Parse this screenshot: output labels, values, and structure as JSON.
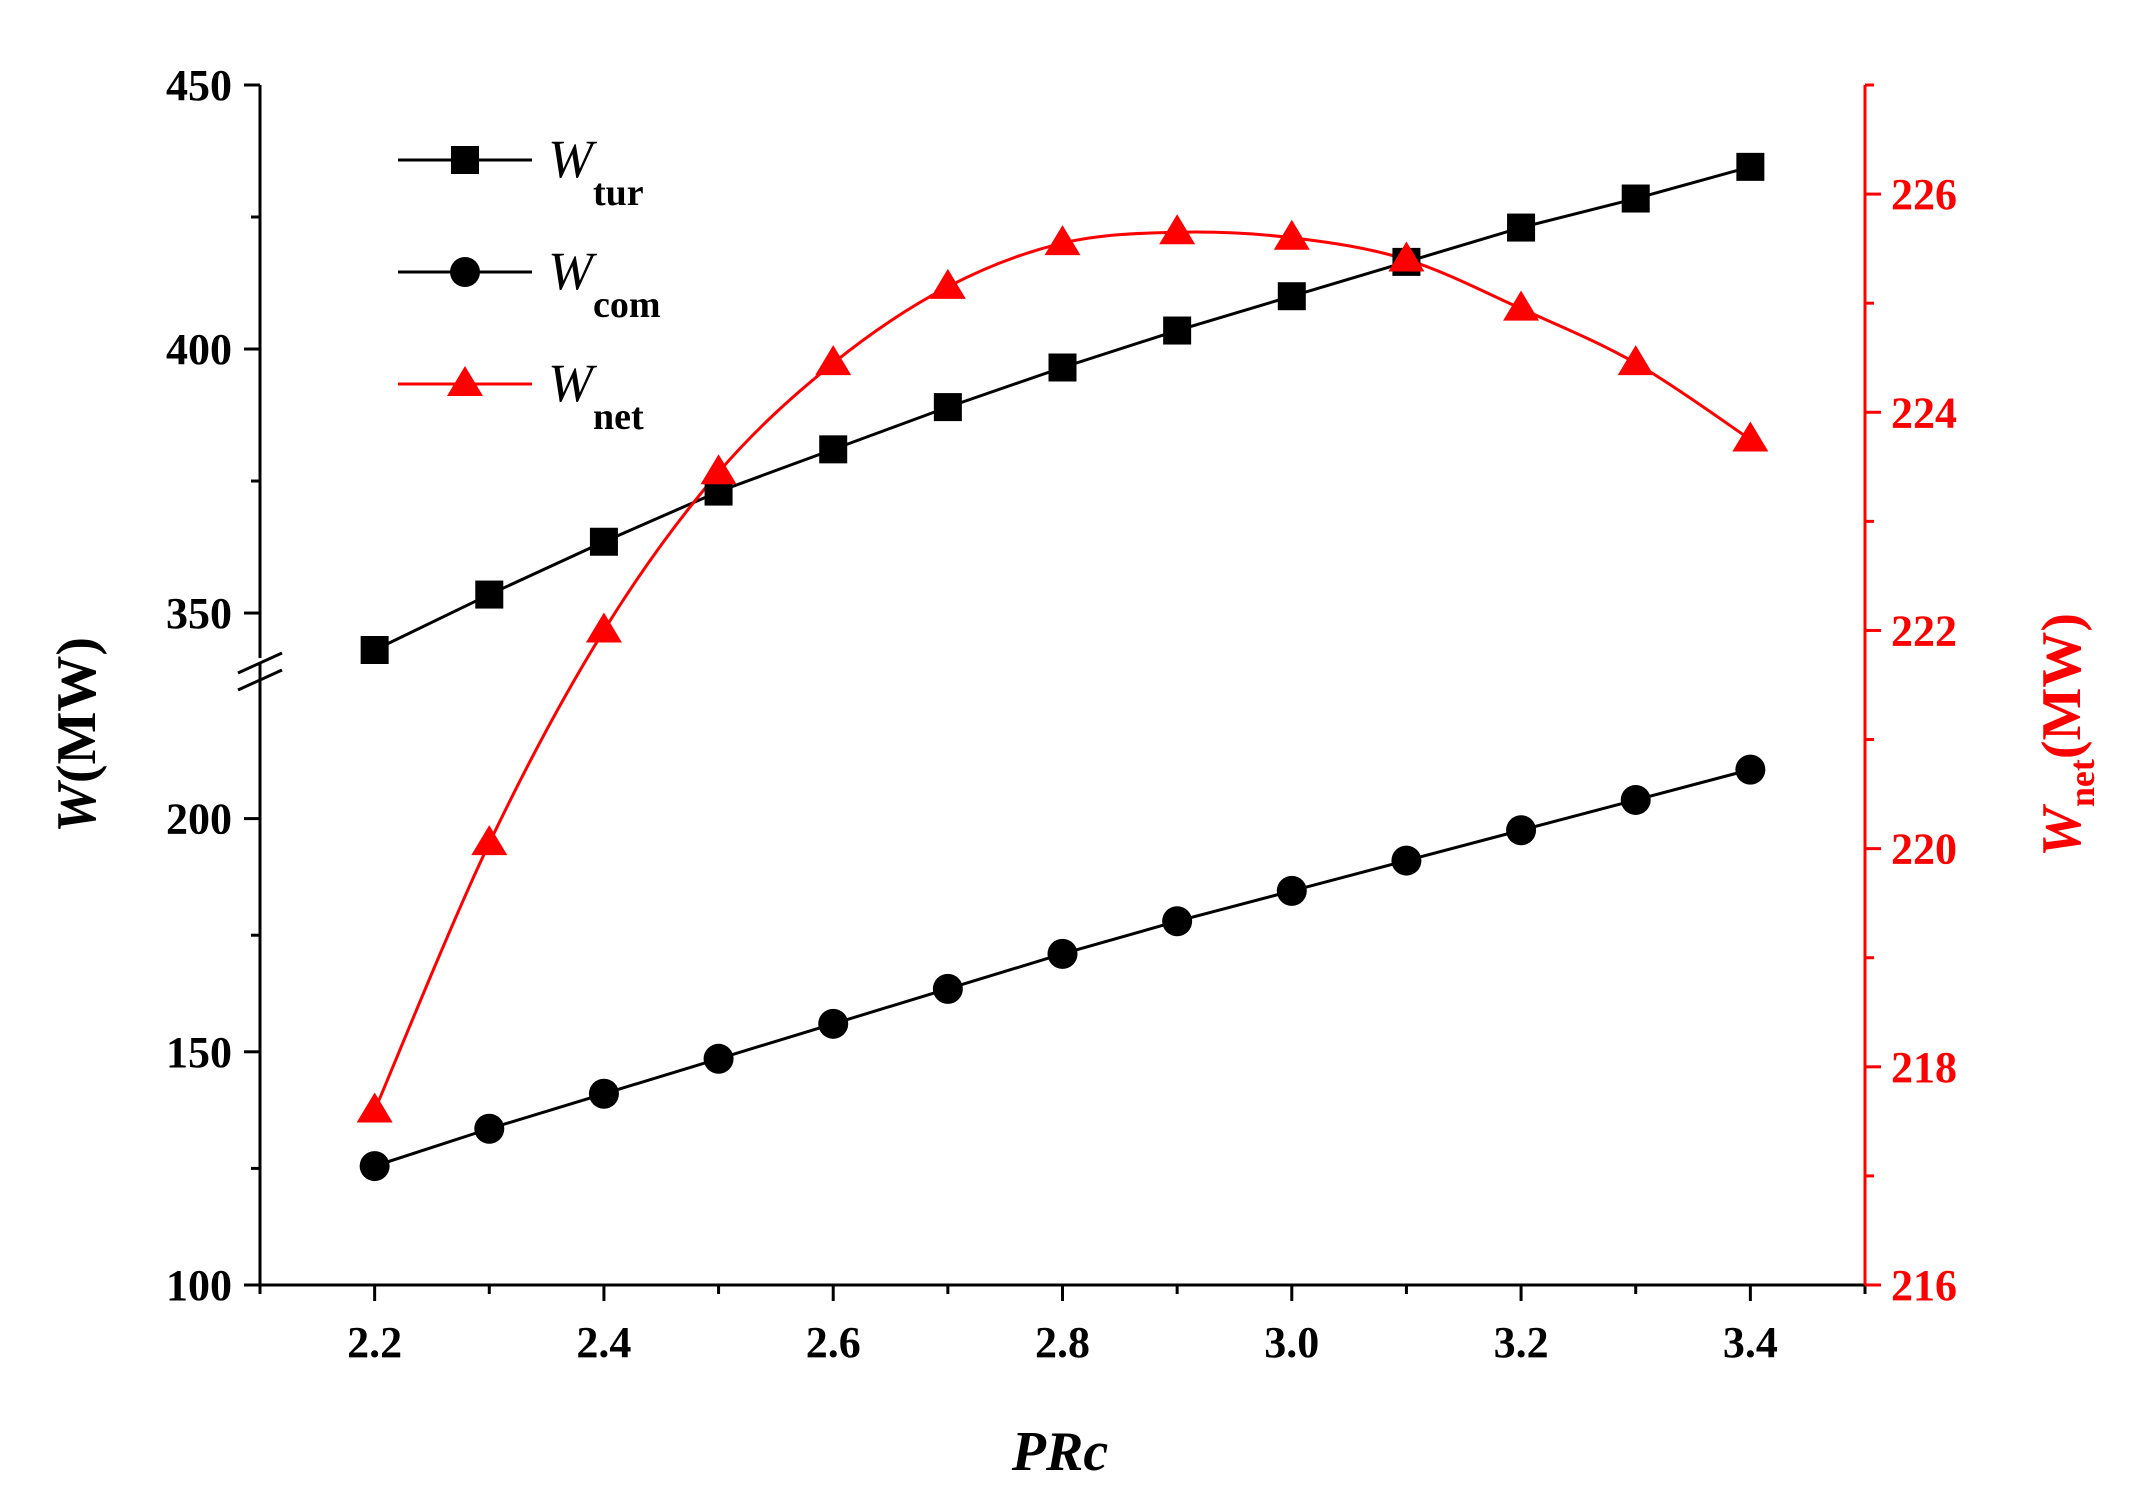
{
  "chart_data": {
    "type": "line",
    "x": [
      2.2,
      2.3,
      2.4,
      2.5,
      2.6,
      2.7,
      2.8,
      2.9,
      3.0,
      3.1,
      3.2,
      3.3,
      3.4
    ],
    "series": [
      {
        "name": "W_tur",
        "label_main": "W",
        "label_sub": "tur",
        "axis": "left",
        "marker": "square",
        "color": "#000000",
        "values": [
          343,
          353.5,
          363.5,
          373,
          381,
          389,
          396.5,
          403.5,
          410,
          416.5,
          423,
          428.5,
          434.5
        ]
      },
      {
        "name": "W_com",
        "label_main": "W",
        "label_sub": "com",
        "axis": "left",
        "marker": "circle",
        "color": "#000000",
        "values": [
          125.5,
          133.5,
          141,
          148.5,
          156,
          163.5,
          171,
          178,
          184.5,
          191,
          197.5,
          204,
          210.5
        ]
      },
      {
        "name": "W_net",
        "label_main": "W",
        "label_sub": "net",
        "axis": "right",
        "marker": "triangle",
        "color": "#ff0000",
        "values": [
          217.6,
          220.05,
          222.0,
          223.45,
          224.45,
          225.15,
          225.55,
          225.65,
          225.6,
          225.4,
          224.95,
          224.45,
          223.75
        ]
      }
    ],
    "x_axis": {
      "title": "PRc",
      "range": [
        2.1,
        3.5
      ],
      "ticks": [
        "2.2",
        "2.4",
        "2.6",
        "2.8",
        "3.0",
        "3.2",
        "3.4"
      ]
    },
    "y_left": {
      "title_main": "W",
      "title_rest": "(MW)",
      "broken": true,
      "lower_range": [
        100,
        225
      ],
      "upper_range": [
        343,
        450
      ],
      "ticks_lower": [
        "100",
        "150",
        "200"
      ],
      "ticks_upper": [
        "350",
        "400",
        "450"
      ]
    },
    "y_right": {
      "title_main": "W",
      "title_sub": "net",
      "title_rest": "(MW)",
      "range": [
        216,
        227
      ],
      "ticks": [
        "216",
        "218",
        "220",
        "222",
        "224",
        "226"
      ]
    },
    "legend_position": "top-left"
  }
}
